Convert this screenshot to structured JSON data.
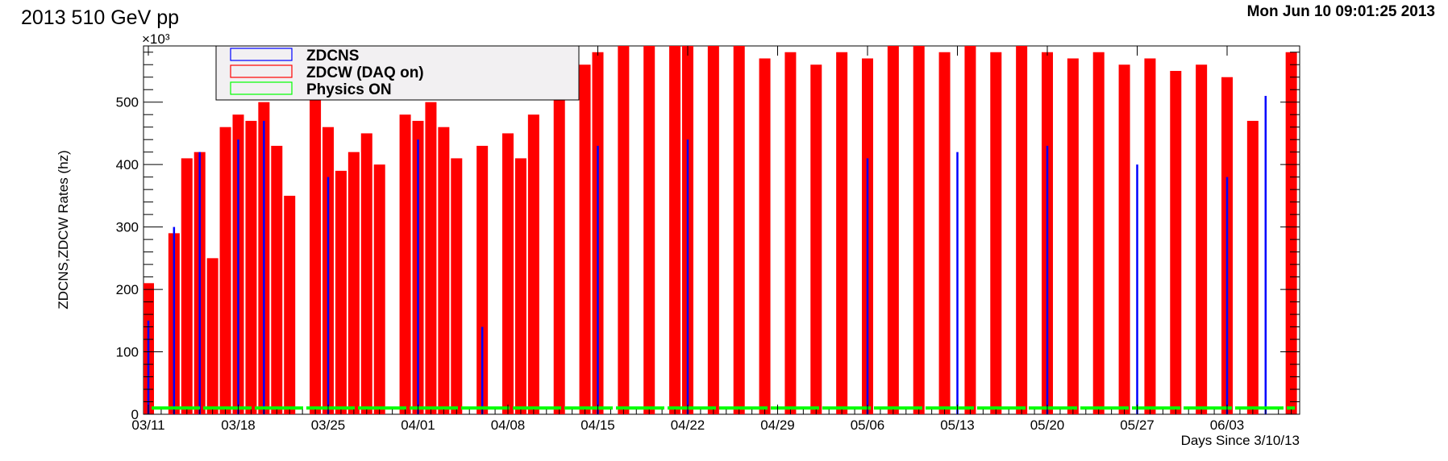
{
  "header": {
    "title": "2013 510 GeV pp",
    "timestamp": "Mon Jun 10 09:01:25 2013"
  },
  "chart_data": {
    "type": "bar",
    "ylabel": "ZDCNS,ZDCW Rates (hz)",
    "xlabel": "Days Since 3/10/13",
    "y_exponent_label": "×10³",
    "ylim": [
      0,
      590000
    ],
    "y_ticks": [
      {
        "value": 0,
        "label": "0"
      },
      {
        "value": 100000,
        "label": "100"
      },
      {
        "value": 200000,
        "label": "200"
      },
      {
        "value": 300000,
        "label": "300"
      },
      {
        "value": 400000,
        "label": "400"
      },
      {
        "value": 500000,
        "label": "500"
      }
    ],
    "x_ticks": [
      "03/11",
      "03/18",
      "03/25",
      "04/01",
      "04/08",
      "04/15",
      "04/22",
      "04/29",
      "05/06",
      "05/13",
      "05/20",
      "05/27",
      "06/03"
    ],
    "legend": [
      {
        "name": "ZDCNS",
        "color": "#0000ff"
      },
      {
        "name": "ZDCW (DAQ on)",
        "color": "#ff0000"
      },
      {
        "name": "Physics ON",
        "color": "#00ff00"
      }
    ],
    "series": [
      {
        "name": "ZDCW (DAQ on)",
        "color": "#ff0000",
        "points": [
          {
            "x": "03/11",
            "y": 210000
          },
          {
            "x": "03/13",
            "y": 290000
          },
          {
            "x": "03/14",
            "y": 410000
          },
          {
            "x": "03/15",
            "y": 420000
          },
          {
            "x": "03/16",
            "y": 250000
          },
          {
            "x": "03/17",
            "y": 460000
          },
          {
            "x": "03/18",
            "y": 480000
          },
          {
            "x": "03/19",
            "y": 470000
          },
          {
            "x": "03/20",
            "y": 500000
          },
          {
            "x": "03/21",
            "y": 430000
          },
          {
            "x": "03/22",
            "y": 350000
          },
          {
            "x": "03/24",
            "y": 520000
          },
          {
            "x": "03/25",
            "y": 460000
          },
          {
            "x": "03/26",
            "y": 390000
          },
          {
            "x": "03/27",
            "y": 420000
          },
          {
            "x": "03/28",
            "y": 450000
          },
          {
            "x": "03/29",
            "y": 400000
          },
          {
            "x": "03/31",
            "y": 480000
          },
          {
            "x": "04/01",
            "y": 470000
          },
          {
            "x": "04/02",
            "y": 500000
          },
          {
            "x": "04/03",
            "y": 460000
          },
          {
            "x": "04/04",
            "y": 410000
          },
          {
            "x": "04/06",
            "y": 430000
          },
          {
            "x": "04/08",
            "y": 450000
          },
          {
            "x": "04/09",
            "y": 410000
          },
          {
            "x": "04/10",
            "y": 480000
          },
          {
            "x": "04/12",
            "y": 570000
          },
          {
            "x": "04/14",
            "y": 560000
          },
          {
            "x": "04/15",
            "y": 580000
          },
          {
            "x": "04/17",
            "y": 590000
          },
          {
            "x": "04/19",
            "y": 590000
          },
          {
            "x": "04/21",
            "y": 590000
          },
          {
            "x": "04/22",
            "y": 590000
          },
          {
            "x": "04/24",
            "y": 590000
          },
          {
            "x": "04/26",
            "y": 590000
          },
          {
            "x": "04/28",
            "y": 570000
          },
          {
            "x": "04/30",
            "y": 580000
          },
          {
            "x": "05/02",
            "y": 560000
          },
          {
            "x": "05/04",
            "y": 580000
          },
          {
            "x": "05/06",
            "y": 570000
          },
          {
            "x": "05/08",
            "y": 590000
          },
          {
            "x": "05/10",
            "y": 590000
          },
          {
            "x": "05/12",
            "y": 580000
          },
          {
            "x": "05/14",
            "y": 590000
          },
          {
            "x": "05/16",
            "y": 580000
          },
          {
            "x": "05/18",
            "y": 590000
          },
          {
            "x": "05/20",
            "y": 580000
          },
          {
            "x": "05/22",
            "y": 570000
          },
          {
            "x": "05/24",
            "y": 580000
          },
          {
            "x": "05/26",
            "y": 560000
          },
          {
            "x": "05/28",
            "y": 570000
          },
          {
            "x": "05/30",
            "y": 550000
          },
          {
            "x": "06/01",
            "y": 560000
          },
          {
            "x": "06/03",
            "y": 540000
          },
          {
            "x": "06/05",
            "y": 470000
          },
          {
            "x": "06/08",
            "y": 580000
          }
        ]
      },
      {
        "name": "ZDCNS",
        "color": "#0000ff",
        "points": [
          {
            "x": "03/11",
            "y": 150000
          },
          {
            "x": "03/13",
            "y": 300000
          },
          {
            "x": "03/15",
            "y": 420000
          },
          {
            "x": "03/18",
            "y": 440000
          },
          {
            "x": "03/20",
            "y": 470000
          },
          {
            "x": "03/25",
            "y": 380000
          },
          {
            "x": "04/01",
            "y": 440000
          },
          {
            "x": "04/06",
            "y": 140000
          },
          {
            "x": "04/15",
            "y": 430000
          },
          {
            "x": "04/22",
            "y": 440000
          },
          {
            "x": "05/06",
            "y": 410000
          },
          {
            "x": "05/13",
            "y": 420000
          },
          {
            "x": "05/20",
            "y": 430000
          },
          {
            "x": "05/27",
            "y": 400000
          },
          {
            "x": "06/03",
            "y": 380000
          },
          {
            "x": "06/06",
            "y": 510000
          }
        ]
      },
      {
        "name": "Physics ON",
        "color": "#00ff00",
        "constant_y": 10000
      }
    ]
  }
}
